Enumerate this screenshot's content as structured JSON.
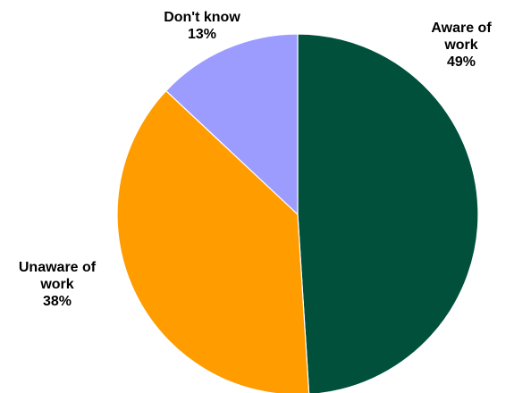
{
  "chart_data": {
    "type": "pie",
    "title": "",
    "slices": [
      {
        "label": [
          "Aware of",
          "work"
        ],
        "value": 49,
        "value_label": "49%",
        "color": "#00503c"
      },
      {
        "label": [
          "Unaware of",
          "work"
        ],
        "value": 38,
        "value_label": "38%",
        "color": "#ff9c00"
      },
      {
        "label": [
          "Don't know"
        ],
        "value": 13,
        "value_label": "13%",
        "color": "#9c9cff"
      }
    ],
    "start_angle": "12 o'clock",
    "direction": "clockwise",
    "slice_border_color": "#ffffff",
    "legend": "none"
  }
}
